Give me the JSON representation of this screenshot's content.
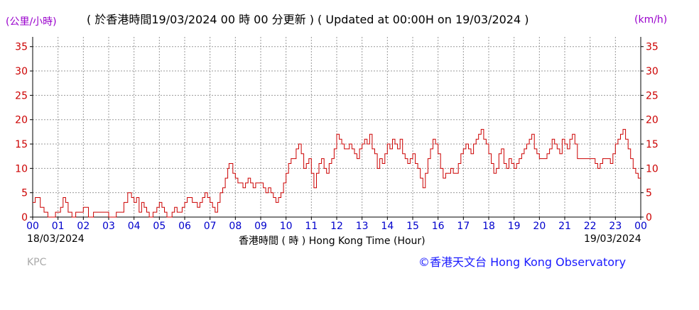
{
  "header": {
    "unit_left": "(公里/小時)",
    "unit_right": "(km/h)",
    "subtitle": "( 於香港時間19/03/2024 00 時 00 分更新 ) ( Updated at 00:00H on 19/03/2024 )"
  },
  "footer": {
    "date_start": "18/03/2024",
    "date_end": "19/03/2024",
    "xlabel": "香港時間 ( 時 )  Hong Kong Time (Hour)",
    "station": "KPC",
    "credit": "©香港天文台 Hong Kong Observatory"
  },
  "colors": {
    "line": "#cc0000",
    "y_ticks": "#cc0000",
    "x_ticks": "#0000cc",
    "units": "#9900cc",
    "credit": "#1a1aff",
    "grid": "#999999"
  },
  "chart_data": {
    "type": "line",
    "xlabel": "香港時間 ( 時 )  Hong Kong Time (Hour)",
    "ylabel": "(公里/小時)",
    "y2label": "(km/h)",
    "xlim": [
      0,
      24
    ],
    "ylim": [
      0,
      37
    ],
    "grid": true,
    "x_tick_labels": [
      "00",
      "01",
      "02",
      "03",
      "04",
      "05",
      "06",
      "07",
      "08",
      "09",
      "10",
      "11",
      "12",
      "13",
      "14",
      "15",
      "16",
      "17",
      "18",
      "19",
      "20",
      "21",
      "22",
      "23",
      "00"
    ],
    "y_tick_values": [
      0,
      5,
      10,
      15,
      20,
      25,
      30,
      35
    ],
    "y_tick_labels": [
      "0",
      "5",
      "10",
      "15",
      "20",
      "25",
      "30",
      "35"
    ],
    "series": [
      {
        "x": [
          0,
          0.1,
          0.2,
          0.3,
          0.45,
          0.6,
          0.75,
          0.9,
          1.0,
          1.1,
          1.2,
          1.3,
          1.4,
          1.55,
          1.7,
          1.85,
          2.0,
          2.2,
          2.4,
          2.6,
          2.8,
          3.0,
          3.1,
          3.2,
          3.3,
          3.4,
          3.5,
          3.6,
          3.75,
          3.9,
          4.0,
          4.1,
          4.2,
          4.3,
          4.4,
          4.5,
          4.6,
          4.75,
          4.9,
          5.0,
          5.1,
          5.2,
          5.3,
          5.4,
          5.5,
          5.6,
          5.7,
          5.8,
          5.9,
          6.0,
          6.1,
          6.2,
          6.3,
          6.4,
          6.5,
          6.6,
          6.7,
          6.8,
          6.9,
          7.0,
          7.1,
          7.2,
          7.3,
          7.4,
          7.5,
          7.6,
          7.7,
          7.75,
          7.8,
          7.9,
          8.0,
          8.1,
          8.2,
          8.3,
          8.4,
          8.5,
          8.6,
          8.7,
          8.8,
          8.9,
          9.0,
          9.1,
          9.2,
          9.3,
          9.4,
          9.5,
          9.6,
          9.7,
          9.8,
          9.9,
          10.0,
          10.1,
          10.2,
          10.3,
          10.4,
          10.5,
          10.6,
          10.7,
          10.8,
          10.9,
          11.0,
          11.1,
          11.2,
          11.3,
          11.4,
          11.5,
          11.6,
          11.7,
          11.8,
          11.9,
          12.0,
          12.1,
          12.2,
          12.3,
          12.4,
          12.5,
          12.6,
          12.7,
          12.8,
          12.9,
          13.0,
          13.1,
          13.2,
          13.3,
          13.4,
          13.5,
          13.6,
          13.7,
          13.8,
          13.9,
          14.0,
          14.1,
          14.2,
          14.3,
          14.4,
          14.5,
          14.6,
          14.7,
          14.8,
          14.9,
          15.0,
          15.1,
          15.2,
          15.3,
          15.4,
          15.5,
          15.6,
          15.7,
          15.8,
          15.9,
          16.0,
          16.1,
          16.2,
          16.3,
          16.4,
          16.5,
          16.6,
          16.7,
          16.8,
          16.9,
          17.0,
          17.1,
          17.2,
          17.3,
          17.4,
          17.5,
          17.6,
          17.7,
          17.8,
          17.9,
          18.0,
          18.1,
          18.2,
          18.3,
          18.4,
          18.5,
          18.6,
          18.7,
          18.8,
          18.9,
          19.0,
          19.1,
          19.2,
          19.3,
          19.4,
          19.5,
          19.6,
          19.7,
          19.8,
          19.9,
          20.0,
          20.1,
          20.2,
          20.3,
          20.4,
          20.5,
          20.6,
          20.7,
          20.8,
          20.9,
          21.0,
          21.1,
          21.2,
          21.3,
          21.4,
          21.5,
          21.6,
          21.7,
          21.8,
          21.9,
          22.0,
          22.1,
          22.2,
          22.3,
          22.4,
          22.5,
          22.6,
          22.7,
          22.8,
          22.9,
          23.0,
          23.1,
          23.2,
          23.3,
          23.4,
          23.5,
          23.6,
          23.7,
          23.8,
          23.9,
          24.0
        ],
        "y": [
          3,
          4,
          4,
          2,
          1,
          0,
          0,
          1,
          1,
          2,
          4,
          3,
          1,
          0,
          1,
          1,
          2,
          0,
          1,
          1,
          1,
          0,
          0,
          0,
          1,
          1,
          1,
          3,
          5,
          4,
          3,
          4,
          1,
          3,
          2,
          1,
          0,
          1,
          2,
          3,
          2,
          1,
          0,
          0,
          1,
          2,
          1,
          1,
          2,
          3,
          4,
          4,
          3,
          3,
          2,
          3,
          4,
          5,
          4,
          3,
          2,
          1,
          3,
          5,
          6,
          8,
          10,
          11,
          11,
          9,
          8,
          7,
          7,
          6,
          7,
          8,
          7,
          6,
          7,
          7,
          7,
          6,
          5,
          6,
          5,
          4,
          3,
          4,
          5,
          7,
          9,
          11,
          12,
          12,
          14,
          15,
          13,
          10,
          11,
          12,
          9,
          6,
          9,
          11,
          12,
          10,
          9,
          11,
          12,
          14,
          17,
          16,
          15,
          14,
          14,
          15,
          14,
          13,
          12,
          14,
          15,
          16,
          15,
          17,
          14,
          13,
          10,
          12,
          11,
          13,
          15,
          14,
          16,
          15,
          14,
          16,
          13,
          12,
          11,
          12,
          13,
          11,
          10,
          8,
          6,
          9,
          12,
          14,
          16,
          15,
          13,
          10,
          8,
          9,
          9,
          10,
          9,
          9,
          11,
          13,
          14,
          15,
          14,
          13,
          15,
          16,
          17,
          18,
          16,
          15,
          13,
          11,
          9,
          10,
          13,
          14,
          11,
          10,
          12,
          11,
          10,
          11,
          12,
          13,
          14,
          15,
          16,
          17,
          14,
          13,
          12,
          12,
          12,
          13,
          14,
          16,
          15,
          14,
          13,
          16,
          15,
          14,
          16,
          17,
          15,
          12,
          12,
          12,
          12,
          12,
          12,
          12,
          11,
          10,
          11,
          12,
          12,
          12,
          11,
          13,
          15,
          16,
          17,
          18,
          16,
          14,
          12,
          10,
          9,
          8,
          8
        ]
      }
    ]
  }
}
